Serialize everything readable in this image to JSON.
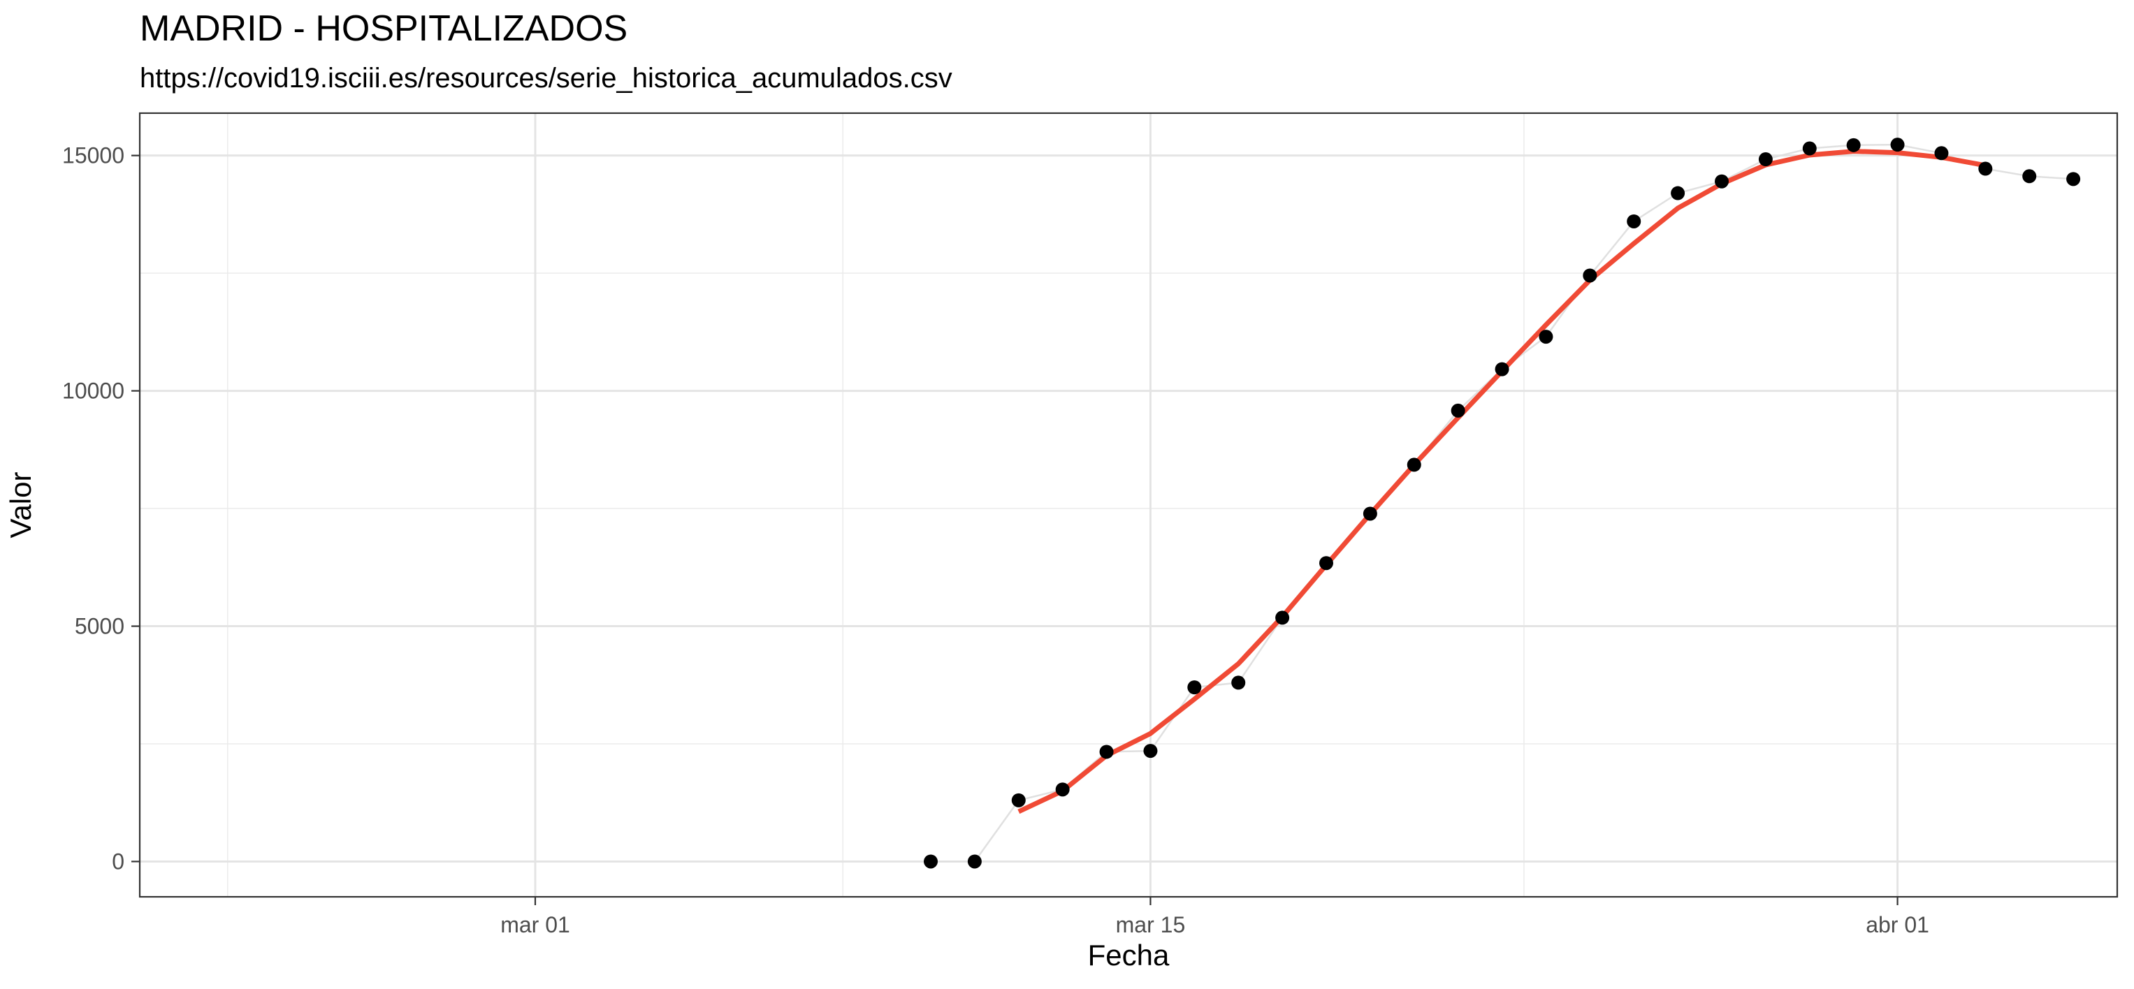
{
  "chart_data": {
    "type": "line",
    "title": "MADRID - HOSPITALIZADOS",
    "subtitle": "https://covid19.isciii.es/resources/serie_historica_acumulados.csv",
    "xlabel": "Fecha",
    "ylabel": "Valor",
    "xlim": [
      "2020-02-21",
      "2020-04-06"
    ],
    "ylim": [
      -750,
      15900
    ],
    "x_ticks": [
      {
        "date": "2020-03-01",
        "label": "mar 01"
      },
      {
        "date": "2020-03-15",
        "label": "mar 15"
      },
      {
        "date": "2020-04-01",
        "label": "abr 01"
      }
    ],
    "y_ticks": [
      {
        "value": 0,
        "label": "0"
      },
      {
        "value": 5000,
        "label": "5000"
      },
      {
        "value": 10000,
        "label": "10000"
      },
      {
        "value": 15000,
        "label": "15000"
      }
    ],
    "grid": true,
    "series": [
      {
        "role": "points",
        "color": "#000000",
        "connector_color": "#e0e0e0",
        "x": [
          "2020-03-10",
          "2020-03-11",
          "2020-03-12",
          "2020-03-13",
          "2020-03-14",
          "2020-03-15",
          "2020-03-16",
          "2020-03-17",
          "2020-03-18",
          "2020-03-19",
          "2020-03-20",
          "2020-03-21",
          "2020-03-22",
          "2020-03-23",
          "2020-03-24",
          "2020-03-25",
          "2020-03-26",
          "2020-03-27",
          "2020-03-28",
          "2020-03-29",
          "2020-03-30",
          "2020-03-31",
          "2020-04-01",
          "2020-04-02",
          "2020-04-03",
          "2020-04-04",
          "2020-04-05"
        ],
        "y": [
          0,
          0,
          1300,
          1530,
          2330,
          2350,
          3700,
          3800,
          5180,
          6340,
          7390,
          8430,
          9580,
          10460,
          11150,
          12450,
          13600,
          14200,
          14450,
          14920,
          15150,
          15220,
          15230,
          15050,
          14720,
          14560,
          14500
        ]
      },
      {
        "role": "smoothed",
        "color": "#f04a35",
        "x": [
          "2020-03-12",
          "2020-03-13",
          "2020-03-14",
          "2020-03-15",
          "2020-03-16",
          "2020-03-17",
          "2020-03-18",
          "2020-03-19",
          "2020-03-20",
          "2020-03-21",
          "2020-03-22",
          "2020-03-23",
          "2020-03-24",
          "2020-03-25",
          "2020-03-26",
          "2020-03-27",
          "2020-03-28",
          "2020-03-29",
          "2020-03-30",
          "2020-03-31",
          "2020-04-01",
          "2020-04-02",
          "2020-04-03"
        ],
        "y": [
          1060,
          1500,
          2250,
          2720,
          3450,
          4200,
          5200,
          6300,
          7380,
          8430,
          9430,
          10420,
          11400,
          12350,
          13130,
          13880,
          14400,
          14800,
          15010,
          15090,
          15060,
          14960,
          14790
        ]
      }
    ]
  }
}
